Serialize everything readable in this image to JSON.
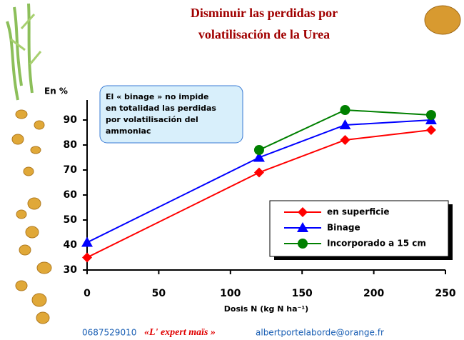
{
  "chart_data": {
    "type": "line",
    "title": [
      "Disminuir las perdidas por",
      "volatilisación de la Urea"
    ],
    "y_label": "En %",
    "x_label": "Dosis N (kg N ha⁻¹)",
    "annotation": [
      "El « binage » no impide",
      "en totalidad las perdidas",
      "por volatilisación del",
      "ammoniac"
    ],
    "x": [
      0,
      120,
      180,
      240
    ],
    "series": [
      {
        "name": "en superficie",
        "color": "#ff0000",
        "marker": "diamond",
        "values": [
          35,
          69,
          82,
          86
        ]
      },
      {
        "name": "Binage",
        "color": "#0000ff",
        "marker": "triangle",
        "values": [
          41,
          75,
          88,
          90
        ]
      },
      {
        "name": "Incorporado a 15 cm",
        "color": "#008000",
        "marker": "circle",
        "values": [
          null,
          78,
          94,
          92
        ]
      }
    ],
    "xlim": [
      0,
      250
    ],
    "xticks": [
      0,
      50,
      100,
      150,
      200,
      250
    ],
    "ylim": [
      30,
      98
    ],
    "yticks": [
      30,
      40,
      50,
      60,
      70,
      80,
      90
    ]
  },
  "footer": {
    "phone": "0687529010",
    "brand": "«L' expert maïs »",
    "email": "albertportelaborde@orange.fr"
  }
}
